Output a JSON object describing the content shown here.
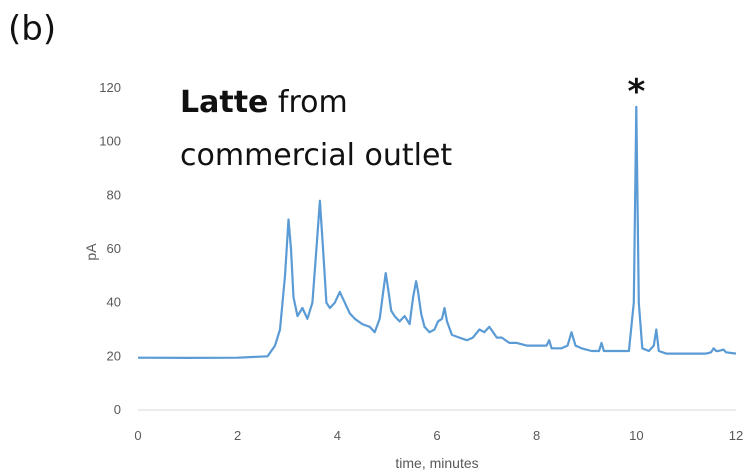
{
  "panel_label": "(b)",
  "annotation": {
    "bold": "Latte",
    "line1_rest": " from",
    "line2": "commercial outlet"
  },
  "peak_marker": "*",
  "colors": {
    "line": "#5b9bd5",
    "axis": "#d9d9d9",
    "text": "#595959"
  },
  "chart_data": {
    "type": "line",
    "title": "",
    "xlabel": "time, minutes",
    "ylabel": "pA",
    "xlim": [
      0,
      12
    ],
    "ylim": [
      0,
      120
    ],
    "xticks": [
      0,
      2,
      4,
      6,
      8,
      10,
      12
    ],
    "yticks": [
      0,
      20,
      40,
      60,
      80,
      100,
      120
    ],
    "grid": false,
    "marked_peak": {
      "x": 10.0,
      "y": 113
    },
    "series": [
      {
        "x": [
          0,
          1,
          2,
          2.6,
          2.75,
          2.85,
          2.95,
          3.02,
          3.07,
          3.12,
          3.2,
          3.3,
          3.4,
          3.5,
          3.58,
          3.65,
          3.72,
          3.78,
          3.85,
          3.95,
          4.05,
          4.15,
          4.25,
          4.35,
          4.5,
          4.65,
          4.75,
          4.85,
          4.92,
          4.97,
          5.02,
          5.08,
          5.15,
          5.25,
          5.35,
          5.45,
          5.52,
          5.58,
          5.62,
          5.68,
          5.75,
          5.85,
          5.95,
          6.02,
          6.1,
          6.15,
          6.2,
          6.3,
          6.45,
          6.6,
          6.72,
          6.85,
          6.95,
          7.05,
          7.2,
          7.3,
          7.45,
          7.6,
          7.8,
          8.0,
          8.2,
          8.25,
          8.3,
          8.5,
          8.62,
          8.7,
          8.78,
          8.9,
          9.1,
          9.25,
          9.3,
          9.35,
          9.6,
          9.85,
          9.95,
          10.0,
          10.05,
          10.12,
          10.25,
          10.35,
          10.4,
          10.45,
          10.6,
          11.0,
          11.4,
          11.5,
          11.55,
          11.6,
          11.65,
          11.75,
          11.8,
          12.0
        ],
        "y": [
          19.5,
          19.4,
          19.5,
          20,
          24,
          30,
          50,
          71,
          60,
          42,
          35,
          38,
          34,
          40,
          60,
          78,
          58,
          40,
          38,
          40,
          44,
          40,
          36,
          34,
          32,
          31,
          29,
          34,
          44,
          51,
          45,
          37,
          35,
          33,
          35,
          32,
          42,
          48,
          44,
          36,
          31,
          29,
          30,
          33,
          34,
          38,
          33,
          28,
          27,
          26,
          27,
          30,
          29,
          31,
          27,
          27,
          25,
          25,
          24,
          24,
          24,
          26,
          23,
          23,
          24,
          29,
          24,
          23,
          22,
          22,
          25,
          22,
          22,
          22,
          40,
          113,
          40,
          23,
          22,
          24,
          30,
          22,
          21,
          21,
          21,
          21.5,
          23,
          22,
          22,
          22.5,
          21.5,
          21
        ]
      }
    ]
  }
}
